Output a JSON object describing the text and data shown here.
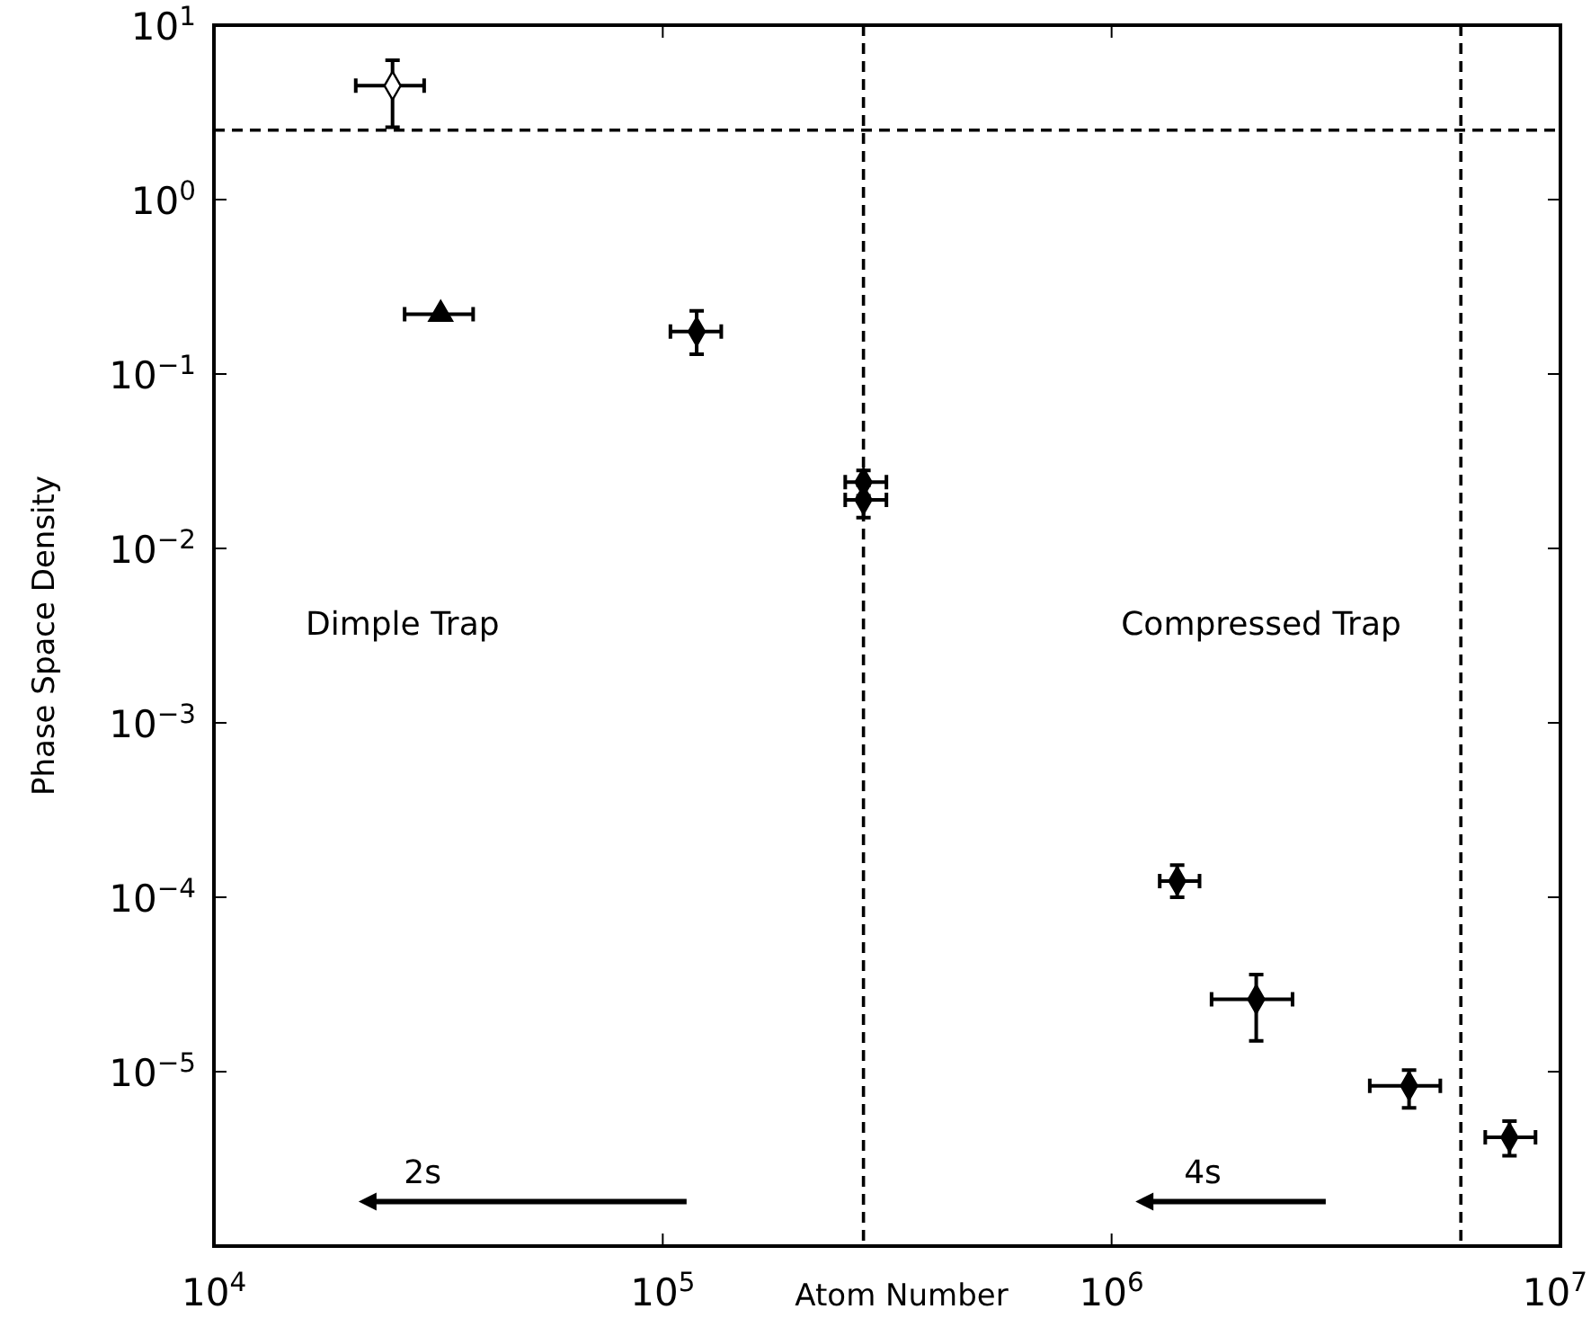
{
  "chart_data": {
    "type": "scatter",
    "xlabel": "Atom Number",
    "ylabel": "Phase Space Density",
    "log": "xy",
    "grid": false,
    "xlim": [
      10000,
      10000000
    ],
    "xticks": [
      {
        "value": 10000,
        "label": "10$^{4}$"
      },
      {
        "value": 100000,
        "label": "10$^{5}$"
      },
      {
        "value": 1000000,
        "label": "10$^{6}$"
      },
      {
        "value": 10000000,
        "label": "10$^{7}$"
      }
    ],
    "ylim": [
      1e-06,
      10
    ],
    "yticks": [
      {
        "value": 10,
        "label": "10$^{1}$"
      },
      {
        "value": 1,
        "label": "10$^{0}$"
      },
      {
        "value": 0.1,
        "label": "10$^{−1}$"
      },
      {
        "value": 0.01,
        "label": "10$^{−2}$"
      },
      {
        "value": 0.001,
        "label": "10$^{−3}$"
      },
      {
        "value": 0.0001,
        "label": "10$^{−4}$"
      },
      {
        "value": 1e-05,
        "label": "10$^{−5}$"
      }
    ],
    "series": [
      {
        "color": "#ffffff",
        "marker": "diamond",
        "x": [
          25000
        ],
        "values": [
          4.5
        ],
        "errors": [
          [
            2.6,
            6.3
          ]
        ],
        "xerrors": [
          [
            20700,
            29400
          ]
        ]
      },
      {
        "color": "#000000",
        "marker": "triangle",
        "x": [
          32000
        ],
        "values": [
          0.22
        ],
        "errors": [
          null
        ],
        "xerrors": [
          [
            26600,
            37800
          ]
        ]
      },
      {
        "color": "#000000",
        "marker": "diamond",
        "x": [
          119000,
          280000,
          280000,
          1400000,
          2100000,
          4600000,
          7700000
        ],
        "values": [
          0.175,
          0.024,
          0.019,
          0.000124,
          2.6e-05,
          8.3e-06,
          4.2e-06
        ],
        "errors": [
          [
            0.13,
            0.23
          ],
          [
            0.02,
            0.028
          ],
          [
            0.015,
            0.023
          ],
          [
            0.0001,
            0.000153
          ],
          [
            1.5e-05,
            3.6e-05
          ],
          [
            6.2e-06,
            1.02e-05
          ],
          [
            3.3e-06,
            5.2e-06
          ]
        ],
        "xerrors": [
          [
            104000,
            135000
          ],
          [
            255000,
            315000
          ],
          [
            255000,
            315000
          ],
          [
            1280000,
            1570000
          ],
          [
            1670000,
            2530000
          ],
          [
            3760000,
            5400000
          ],
          [
            6800000,
            8800000
          ]
        ]
      }
    ],
    "ref_lines": [
      {
        "axis": "y",
        "value": 2.5,
        "line_style": "dashed"
      },
      {
        "axis": "x",
        "value": 280000,
        "line_style": "dashed"
      },
      {
        "axis": "x",
        "value": 6000000,
        "line_style": "dashed"
      }
    ],
    "annotations": [
      "Dimple Trap",
      "Compressed Trap",
      "2s",
      "4s"
    ]
  }
}
